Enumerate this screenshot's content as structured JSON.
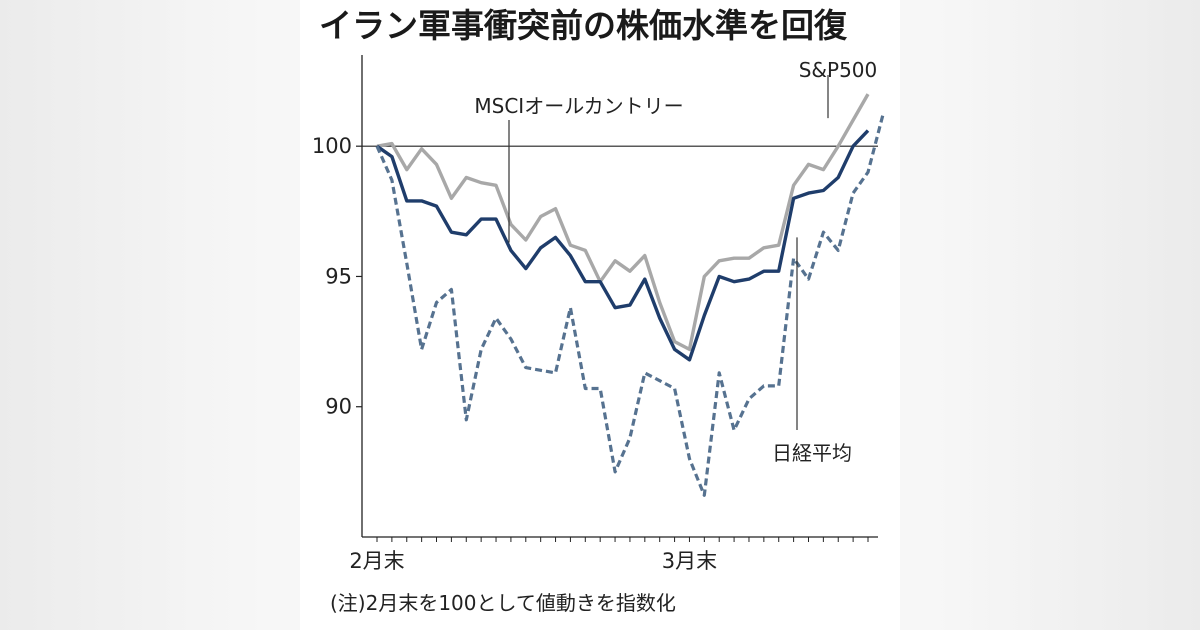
{
  "title": "イラン軍事衝突前の株価水準を回復",
  "note": "(注)2月末を100として値動きを指数化",
  "chart_data": {
    "type": "line",
    "title": "イラン軍事衝突前の株価水準を回復",
    "xlabel": "",
    "ylabel": "",
    "x_tick_labels": [
      {
        "index": 0,
        "label": "2月末"
      },
      {
        "index": 21,
        "label": "3月末"
      }
    ],
    "y_ticks": [
      90,
      95,
      100
    ],
    "ylim": [
      85,
      103.5
    ],
    "reference_line": 100,
    "grid": false,
    "series": [
      {
        "name": "S&P500",
        "color": "#a8a8a8",
        "style": "solid",
        "values": [
          100,
          100.1,
          99.1,
          99.9,
          99.3,
          98,
          98.8,
          98.6,
          98.5,
          97,
          96.4,
          97.3,
          97.6,
          96.2,
          96,
          94.8,
          95.6,
          95.2,
          95.8,
          94,
          92.5,
          92.2,
          95,
          95.6,
          95.7,
          95.7,
          96.1,
          96.2,
          98.5,
          99.3,
          99.1,
          100,
          101,
          102
        ]
      },
      {
        "name": "MSCIオールカントリー",
        "color": "#1f3d6b",
        "style": "solid",
        "values": [
          100,
          99.6,
          97.9,
          97.9,
          97.7,
          96.7,
          96.6,
          97.2,
          97.2,
          96,
          95.3,
          96.1,
          96.5,
          95.8,
          94.8,
          94.8,
          93.8,
          93.9,
          94.9,
          93.4,
          92.2,
          91.8,
          93.5,
          95,
          94.8,
          94.9,
          95.2,
          95.2,
          98,
          98.2,
          98.3,
          98.8,
          100,
          100.6
        ]
      },
      {
        "name": "日経平均",
        "color": "#567290",
        "style": "dashed",
        "values": [
          100,
          98.7,
          95.5,
          92.2,
          94,
          94.5,
          89.5,
          92.2,
          93.4,
          92.6,
          91.5,
          91.4,
          91.3,
          93.8,
          90.7,
          90.7,
          87.5,
          88.8,
          91.3,
          91,
          90.7,
          88,
          86.6,
          91.3,
          89.1,
          90.3,
          90.8,
          90.8,
          95.7,
          94.9,
          96.7,
          96,
          98.2,
          99,
          101.2
        ]
      }
    ],
    "annotations": [
      {
        "series": "S&P500",
        "text": "S&P500"
      },
      {
        "series": "MSCIオールカントリー",
        "text": "MSCIオールカントリー"
      },
      {
        "series": "日経平均",
        "text": "日経平均"
      }
    ]
  }
}
